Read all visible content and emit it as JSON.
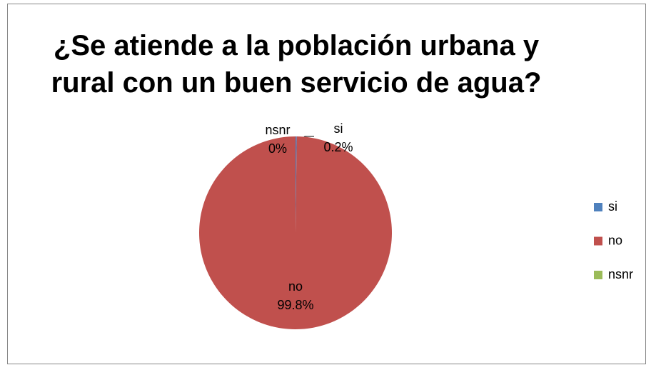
{
  "chart_data": {
    "type": "pie",
    "title": "¿Se atiende a la población urbana y rural con un buen servicio de agua?",
    "categories": [
      "si",
      "no",
      "nsnr"
    ],
    "values": [
      0.2,
      99.8,
      0
    ],
    "value_labels": [
      "0.2%",
      "99.8%",
      "0%"
    ],
    "colors": [
      "#4f81bd",
      "#c0504d",
      "#9bbb59"
    ],
    "legend": "right"
  }
}
